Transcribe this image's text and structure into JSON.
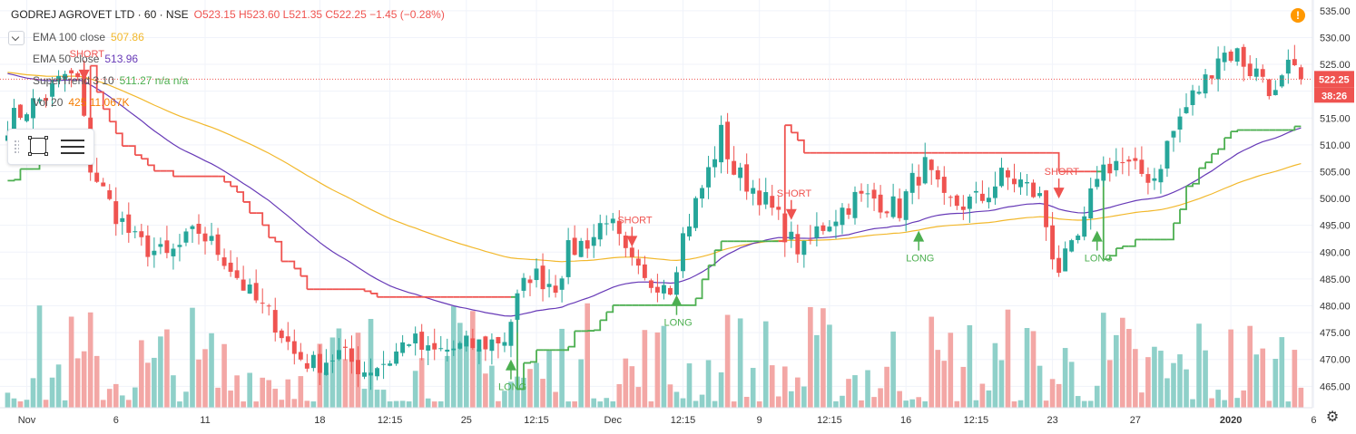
{
  "header": {
    "symbol": "GODREJ AGROVET LTD · 60 · NSE",
    "ohlc": "O523.15 H523.60 L521.35 C522.25 −1.45 (−0.28%)"
  },
  "indicators": [
    {
      "name": "EMA 100 close",
      "value": "507.86",
      "color": "#f2b82c"
    },
    {
      "name": "EMA 50 close",
      "value": "513.96",
      "color": "#673ab7"
    },
    {
      "name": "SuperTrend 3 10",
      "value": "511.27  n/a  n/a",
      "color": "#4caf50"
    },
    {
      "name": "Vol 20",
      "value": "425  11.067K",
      "color": "#f57c00"
    }
  ],
  "colors": {
    "up": "#26a69a",
    "down": "#ef5350",
    "vol_up": "#8fd0c9",
    "vol_down": "#f3a7a5",
    "ema100": "#f2b82c",
    "ema50": "#673ab7",
    "st_up": "#4caf50",
    "st_down": "#ef5350",
    "grid": "#f0f3fa",
    "last_price": "#ef5350"
  },
  "icons": {
    "alert": "alert-icon",
    "settings": "gear-icon",
    "collapse": "chevron-down-icon",
    "rectangle": "rectangle-tool-icon",
    "lines": "object-tree-icon"
  },
  "alert_glyph": "!",
  "gear_glyph": "⚙",
  "chart_data": {
    "type": "candlestick",
    "y_range": [
      461,
      537
    ],
    "y_ticks": [
      465,
      470,
      475,
      480,
      485,
      490,
      495,
      500,
      505,
      510,
      515,
      520,
      525,
      530,
      535
    ],
    "y_tick_labels": [
      "465.00",
      "470.00",
      "475.00",
      "480.00",
      "485.00",
      "490.00",
      "495.00",
      "500.00",
      "505.00",
      "510.00",
      "515.00",
      "520.00",
      "525.00",
      "530.00",
      "535.00"
    ],
    "x_tick_labels": [
      {
        "label": "Nov",
        "index": 3
      },
      {
        "label": "6",
        "index": 17
      },
      {
        "label": "11",
        "index": 31
      },
      {
        "label": "18",
        "index": 49
      },
      {
        "label": "12:15",
        "index": 60
      },
      {
        "label": "25",
        "index": 72
      },
      {
        "label": "12:15",
        "index": 83
      },
      {
        "label": "Dec",
        "index": 95
      },
      {
        "label": "12:15",
        "index": 106
      },
      {
        "label": "9",
        "index": 118
      },
      {
        "label": "12:15",
        "index": 129
      },
      {
        "label": "16",
        "index": 141
      },
      {
        "label": "12:15",
        "index": 152
      },
      {
        "label": "23",
        "index": 164
      },
      {
        "label": "27",
        "index": 177
      },
      {
        "label": "2020",
        "index": 192
      },
      {
        "label": "6",
        "index": 205
      }
    ],
    "last_price": 522.25,
    "last_price_label": "522.25",
    "countdown_label": "38:26",
    "anchors": [
      [
        0,
        514
      ],
      [
        3,
        517
      ],
      [
        6,
        519
      ],
      [
        9,
        523
      ],
      [
        11,
        522
      ],
      [
        13,
        506
      ],
      [
        16,
        499
      ],
      [
        20,
        492
      ],
      [
        25,
        489
      ],
      [
        30,
        494
      ],
      [
        34,
        489
      ],
      [
        38,
        482
      ],
      [
        42,
        477
      ],
      [
        45,
        471
      ],
      [
        48,
        469
      ],
      [
        52,
        471
      ],
      [
        56,
        468
      ],
      [
        60,
        470
      ],
      [
        63,
        474
      ],
      [
        66,
        471
      ],
      [
        70,
        472
      ],
      [
        75,
        473
      ],
      [
        78,
        474
      ],
      [
        80,
        481
      ],
      [
        82,
        486
      ],
      [
        86,
        484
      ],
      [
        88,
        490
      ],
      [
        92,
        493
      ],
      [
        94,
        497
      ],
      [
        97,
        489
      ],
      [
        100,
        484
      ],
      [
        103,
        485
      ],
      [
        104,
        484
      ],
      [
        106,
        493
      ],
      [
        108,
        499
      ],
      [
        110,
        505
      ],
      [
        112,
        512
      ],
      [
        114,
        505
      ],
      [
        118,
        501
      ],
      [
        121,
        496
      ],
      [
        123,
        492
      ],
      [
        125,
        490
      ],
      [
        127,
        494
      ],
      [
        130,
        497
      ],
      [
        133,
        500
      ],
      [
        136,
        500
      ],
      [
        140,
        498
      ],
      [
        142,
        503
      ],
      [
        144,
        506
      ],
      [
        147,
        499
      ],
      [
        150,
        499
      ],
      [
        153,
        500
      ],
      [
        156,
        504
      ],
      [
        159,
        503
      ],
      [
        162,
        500
      ],
      [
        164,
        490
      ],
      [
        165,
        487
      ],
      [
        167,
        490
      ],
      [
        169,
        495
      ],
      [
        171,
        505
      ],
      [
        174,
        507
      ],
      [
        177,
        505
      ],
      [
        180,
        504
      ],
      [
        182,
        510
      ],
      [
        184,
        515
      ],
      [
        186,
        519
      ],
      [
        188,
        522
      ],
      [
        190,
        527
      ],
      [
        193,
        527
      ],
      [
        195,
        524
      ],
      [
        197,
        523
      ],
      [
        199,
        519
      ],
      [
        201,
        524
      ],
      [
        203,
        522
      ]
    ],
    "volume_max": 26000,
    "annotations": [
      {
        "type": "short",
        "text": "SHORT",
        "index": 12,
        "price": 522
      },
      {
        "type": "short",
        "text": "SHORT",
        "index": 98,
        "price": 491
      },
      {
        "type": "short",
        "text": "SHORT",
        "index": 123,
        "price": 496
      },
      {
        "type": "short",
        "text": "SHORT",
        "index": 165,
        "price": 500
      },
      {
        "type": "long",
        "text": "LONG",
        "index": 79,
        "price": 470
      },
      {
        "type": "long",
        "text": "LONG",
        "index": 105,
        "price": 482
      },
      {
        "type": "long",
        "text": "LONG",
        "index": 143,
        "price": 494
      },
      {
        "type": "long",
        "text": "LONG",
        "index": 171,
        "price": 494
      }
    ]
  }
}
